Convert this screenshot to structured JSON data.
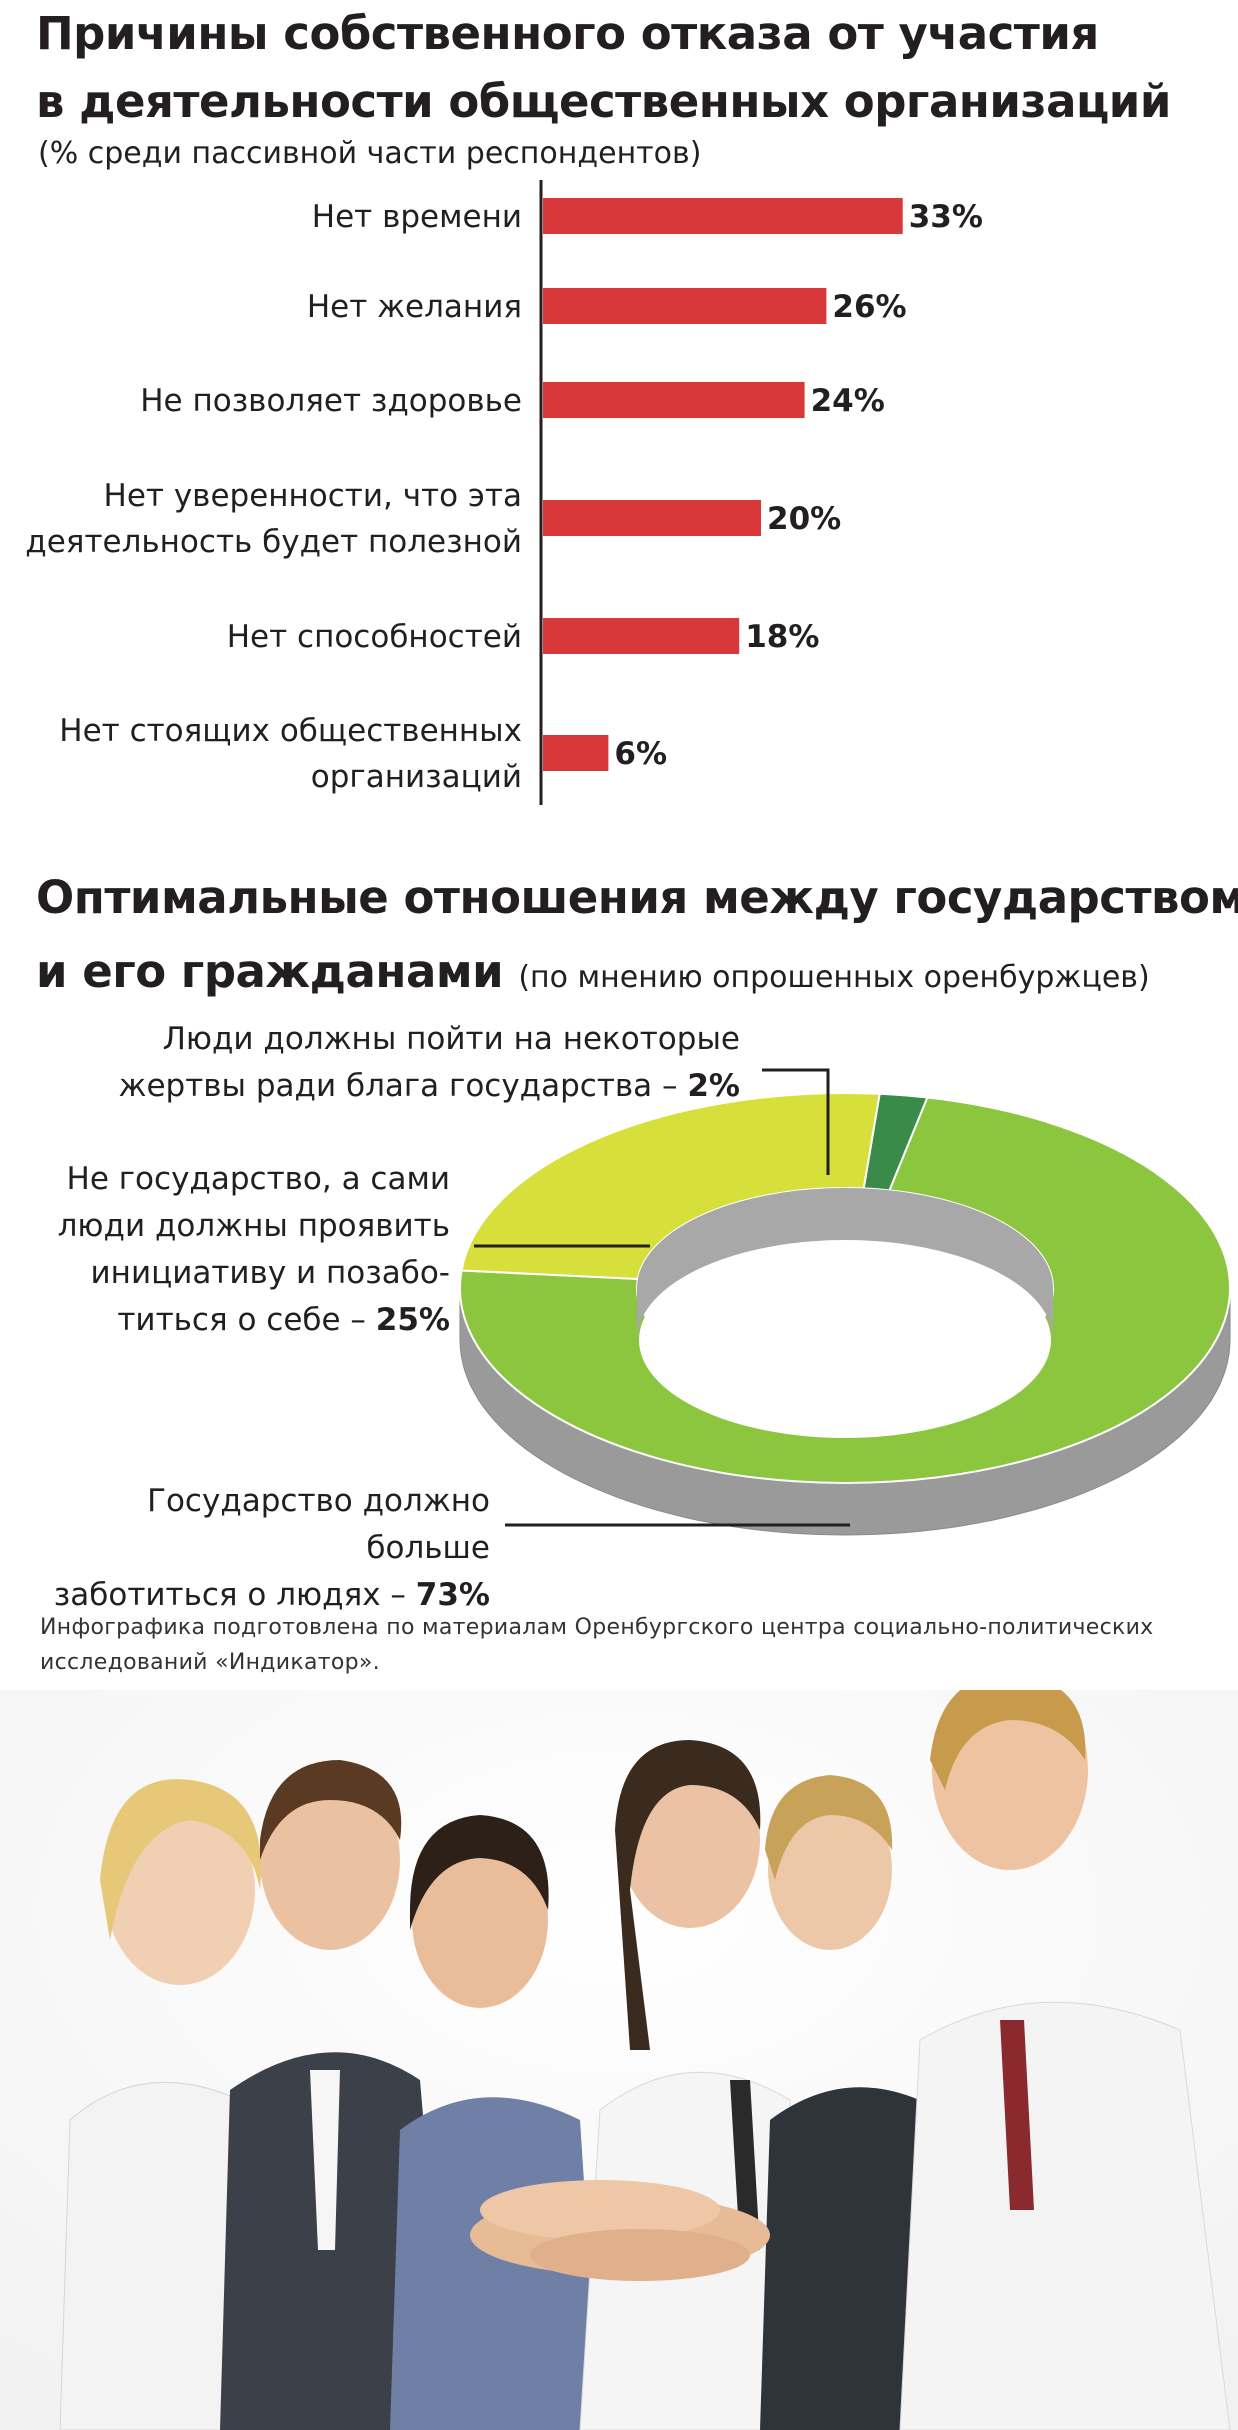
{
  "bar_section": {
    "title_line1": "Причины собственного отказа от участия",
    "title_line2": "в деятельности общественных организаций",
    "subtitle": "(% среди пассивной части респондентов)"
  },
  "pie_section": {
    "title_line1": "Оптимальные отношения между государством",
    "title_line2": "и его гражданами",
    "subtitle": "(по мнению опрошенных оренбуржцев)"
  },
  "chart_data": [
    {
      "type": "bar",
      "orientation": "horizontal",
      "title": "Причины собственного отказа от участия в деятельности общественных организаций",
      "subtitle": "(% среди пассивной части респондентов)",
      "categories": [
        [
          "Нет времени"
        ],
        [
          "Нет желания"
        ],
        [
          "Не позволяет здоровье"
        ],
        [
          "Нет уверенности, что эта",
          "деятельность будет полезной"
        ],
        [
          "Нет способностей"
        ],
        [
          "Нет стоящих общественных",
          "организаций"
        ]
      ],
      "values": [
        33,
        26,
        24,
        20,
        18,
        6
      ],
      "value_labels": [
        "33%",
        "26%",
        "24%",
        "20%",
        "18%",
        "6%"
      ],
      "unit": "%",
      "color": "#d9383a",
      "xlim": [
        0,
        50
      ],
      "grid": false
    },
    {
      "type": "pie",
      "style": "donut-3d",
      "title": "Оптимальные отношения между государством и его гражданами",
      "subtitle": "(по мнению опрошенных оренбуржцев)",
      "slices": [
        {
          "label_lines": [
            "Государство должно больше",
            "заботиться о людях – "
          ],
          "value_text": "73%",
          "value": 73,
          "color": "#8cc63f"
        },
        {
          "label_lines": [
            "Не государство, а сами",
            "люди должны проявить",
            "инициативу и позабо-",
            "титься о себе – "
          ],
          "value_text": "25%",
          "value": 25,
          "color": "#d7e03a"
        },
        {
          "label_lines": [
            "Люди должны пойти на некоторые",
            "жертвы ради блага государства – "
          ],
          "value_text": "2%",
          "value": 2,
          "color": "#3a8a4a"
        }
      ]
    }
  ],
  "footnote": {
    "line1": "Инфографика подготовлена по материалам Оренбургского центра социально-политических",
    "line2": "исследований «Индикатор»."
  },
  "photo": {
    "subject": "group-of-six-people-joining-hands"
  },
  "colors": {
    "bar": "#d9383a",
    "green": "#8cc63f",
    "yellow": "#d7e03a",
    "dark_green": "#3a8a4a",
    "side": "#9a9a9a"
  }
}
